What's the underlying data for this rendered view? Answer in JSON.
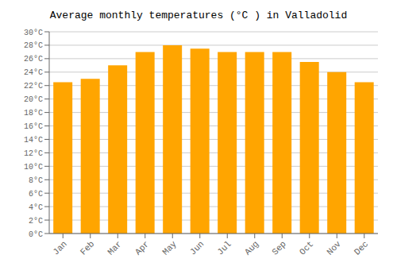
{
  "chart_data": {
    "type": "bar",
    "title": "Average monthly temperatures (°C ) in Valladolid",
    "categories": [
      "Jan",
      "Feb",
      "Mar",
      "Apr",
      "May",
      "Jun",
      "Jul",
      "Aug",
      "Sep",
      "Oct",
      "Nov",
      "Dec"
    ],
    "values": [
      22.5,
      23.0,
      25.0,
      27.0,
      28.0,
      27.5,
      27.0,
      27.0,
      27.0,
      25.5,
      24.0,
      22.5
    ],
    "color": "#FFA500",
    "ylim": [
      0,
      30
    ],
    "yticks": [
      {
        "value": 0,
        "label": "0°C"
      },
      {
        "value": 2,
        "label": "2°C"
      },
      {
        "value": 4,
        "label": "4°C"
      },
      {
        "value": 6,
        "label": "6°C"
      },
      {
        "value": 8,
        "label": "8°C"
      },
      {
        "value": 10,
        "label": "10°C"
      },
      {
        "value": 12,
        "label": "12°C"
      },
      {
        "value": 14,
        "label": "14°C"
      },
      {
        "value": 16,
        "label": "16°C"
      },
      {
        "value": 18,
        "label": "18°C"
      },
      {
        "value": 20,
        "label": "20°C"
      },
      {
        "value": 22,
        "label": "22°C"
      },
      {
        "value": 24,
        "label": "24°C"
      },
      {
        "value": 26,
        "label": "26°C"
      },
      {
        "value": 28,
        "label": "28°C"
      },
      {
        "value": 30,
        "label": "30°C"
      }
    ],
    "grid": true
  }
}
